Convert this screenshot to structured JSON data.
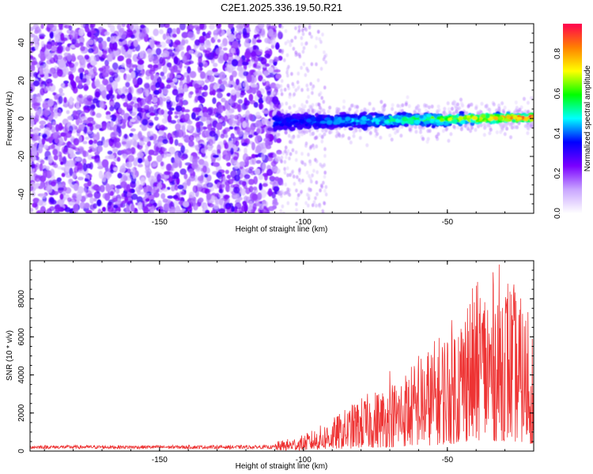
{
  "title": "C2E1.2025.336.19.50.R21",
  "chart_data": [
    {
      "type": "heatmap",
      "name": "spectrogram",
      "xlabel": "Height of straight line (km)",
      "ylabel": "Frequency (Hz)",
      "xlim": [
        -195,
        -20
      ],
      "ylim": [
        -50,
        50
      ],
      "xticks": [
        -150,
        -100,
        -50
      ],
      "yticks": [
        -40,
        -20,
        0,
        20,
        40
      ],
      "colorbar": {
        "label": "Normalized spectral amplitude",
        "range": [
          0,
          0.95
        ],
        "ticks": [
          "0.0",
          "0.2",
          "0.4",
          "0.6",
          "0.8"
        ],
        "colors": [
          "#ffffff",
          "#c9a6ff",
          "#7a00ff",
          "#0000ff",
          "#00ffff",
          "#00ff00",
          "#ffff00",
          "#ff8000",
          "#ff0050"
        ]
      },
      "regions": [
        {
          "description": "broadband noise",
          "x_range": [
            -195,
            -108
          ],
          "freq_range": [
            -50,
            50
          ],
          "amplitude": 0.05
        },
        {
          "description": "signal trace",
          "x_range": [
            -110,
            -20
          ],
          "center_freq_start": -2,
          "center_freq_end": 0.5,
          "amplitude_start": 0.2,
          "amplitude_end": 0.9
        }
      ]
    },
    {
      "type": "line",
      "name": "snr",
      "xlabel": "Height of straight line (km)",
      "ylabel": "SNR (10 * v/v)",
      "xlim": [
        -195,
        -20
      ],
      "ylim": [
        0,
        10000
      ],
      "xticks": [
        -150,
        -100,
        -50
      ],
      "yticks": [
        0,
        2000,
        4000,
        6000,
        8000
      ],
      "color": "#ee3333",
      "envelope": [
        {
          "x": -195,
          "y": 250
        },
        {
          "x": -110,
          "y": 250
        },
        {
          "x": -100,
          "y": 450
        },
        {
          "x": -90,
          "y": 900
        },
        {
          "x": -80,
          "y": 1500
        },
        {
          "x": -70,
          "y": 1900
        },
        {
          "x": -60,
          "y": 2600
        },
        {
          "x": -50,
          "y": 3500
        },
        {
          "x": -40,
          "y": 4700
        },
        {
          "x": -30,
          "y": 5200
        },
        {
          "x": -20,
          "y": 3500
        }
      ],
      "peaks": [
        {
          "x": -32,
          "y": 9800
        },
        {
          "x": -43,
          "y": 7500
        },
        {
          "x": -22,
          "y": 7300
        },
        {
          "x": -38,
          "y": 6700
        },
        {
          "x": -50,
          "y": 5700
        },
        {
          "x": -60,
          "y": 5000
        },
        {
          "x": -70,
          "y": 4200
        },
        {
          "x": -82,
          "y": 2300
        },
        {
          "x": -100,
          "y": 700
        }
      ]
    }
  ]
}
